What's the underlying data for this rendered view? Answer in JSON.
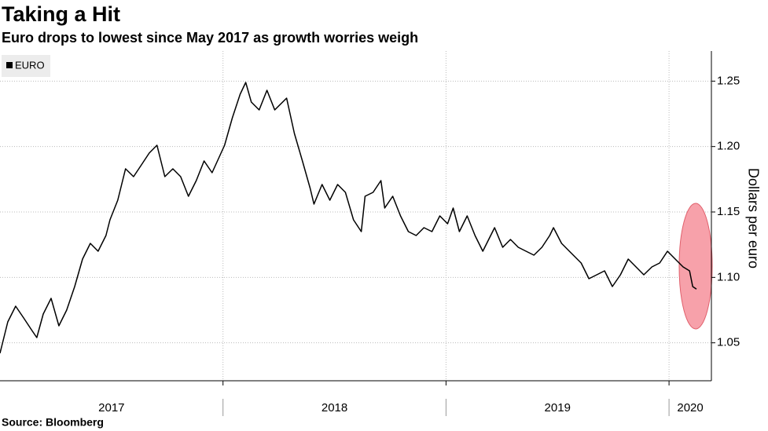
{
  "chart_data": {
    "type": "line",
    "title": "Taking a Hit",
    "subtitle": "Euro drops to lowest since May 2017 as growth worries weigh",
    "y_label": "Dollars per euro",
    "source": "Source: Bloomberg",
    "legend": "top-left",
    "grid": true,
    "xlim": [
      2017.0,
      2020.19
    ],
    "xticks": [
      2017,
      2018,
      2019,
      2020
    ],
    "ylim": [
      1.021,
      1.273
    ],
    "yticks": [
      1.05,
      {
        "value": 1.1,
        "label": "1.10"
      },
      1.15,
      {
        "value": 1.2,
        "label": "1.20"
      },
      1.25
    ],
    "x": [
      2017.0,
      2017.035,
      2017.07,
      2017.106,
      2017.141,
      2017.165,
      2017.194,
      2017.229,
      2017.264,
      2017.299,
      2017.335,
      2017.37,
      2017.405,
      2017.44,
      2017.475,
      2017.493,
      2017.528,
      2017.563,
      2017.599,
      2017.634,
      2017.669,
      2017.704,
      2017.739,
      2017.775,
      2017.81,
      2017.845,
      2017.88,
      2017.915,
      2017.951,
      2018.007,
      2018.042,
      2018.077,
      2018.102,
      2018.127,
      2018.162,
      2018.197,
      2018.232,
      2018.285,
      2018.32,
      2018.356,
      2018.391,
      2018.408,
      2018.444,
      2018.479,
      2018.514,
      2018.549,
      2018.585,
      2018.62,
      2018.637,
      2018.673,
      2018.708,
      2018.725,
      2018.761,
      2018.796,
      2018.831,
      2018.866,
      2018.901,
      2018.937,
      2018.972,
      2019.007,
      2019.032,
      2019.06,
      2019.095,
      2019.13,
      2019.165,
      2019.218,
      2019.254,
      2019.289,
      2019.324,
      2019.359,
      2019.394,
      2019.43,
      2019.465,
      2019.482,
      2019.518,
      2019.553,
      2019.606,
      2019.641,
      2019.676,
      2019.711,
      2019.746,
      2019.782,
      2019.817,
      2019.852,
      2019.887,
      2019.923,
      2019.958,
      2019.993,
      2020.028,
      2020.063,
      2020.092,
      2020.106,
      2020.123
    ],
    "series": [
      {
        "name": "EURO",
        "color": "#000000",
        "values": [
          1.042,
          1.066,
          1.078,
          1.069,
          1.06,
          1.054,
          1.072,
          1.084,
          1.063,
          1.075,
          1.093,
          1.114,
          1.126,
          1.12,
          1.132,
          1.144,
          1.159,
          1.183,
          1.177,
          1.186,
          1.195,
          1.201,
          1.177,
          1.183,
          1.177,
          1.162,
          1.174,
          1.189,
          1.18,
          1.201,
          1.222,
          1.24,
          1.249,
          1.234,
          1.228,
          1.243,
          1.228,
          1.237,
          1.21,
          1.189,
          1.168,
          1.156,
          1.171,
          1.159,
          1.171,
          1.165,
          1.144,
          1.135,
          1.162,
          1.165,
          1.174,
          1.153,
          1.162,
          1.147,
          1.135,
          1.132,
          1.138,
          1.135,
          1.147,
          1.141,
          1.153,
          1.135,
          1.147,
          1.132,
          1.12,
          1.138,
          1.123,
          1.129,
          1.123,
          1.12,
          1.117,
          1.123,
          1.132,
          1.138,
          1.126,
          1.12,
          1.111,
          1.099,
          1.102,
          1.105,
          1.093,
          1.102,
          1.114,
          1.108,
          1.102,
          1.108,
          1.111,
          1.12,
          1.114,
          1.108,
          1.105,
          1.093,
          1.091
        ]
      }
    ]
  }
}
